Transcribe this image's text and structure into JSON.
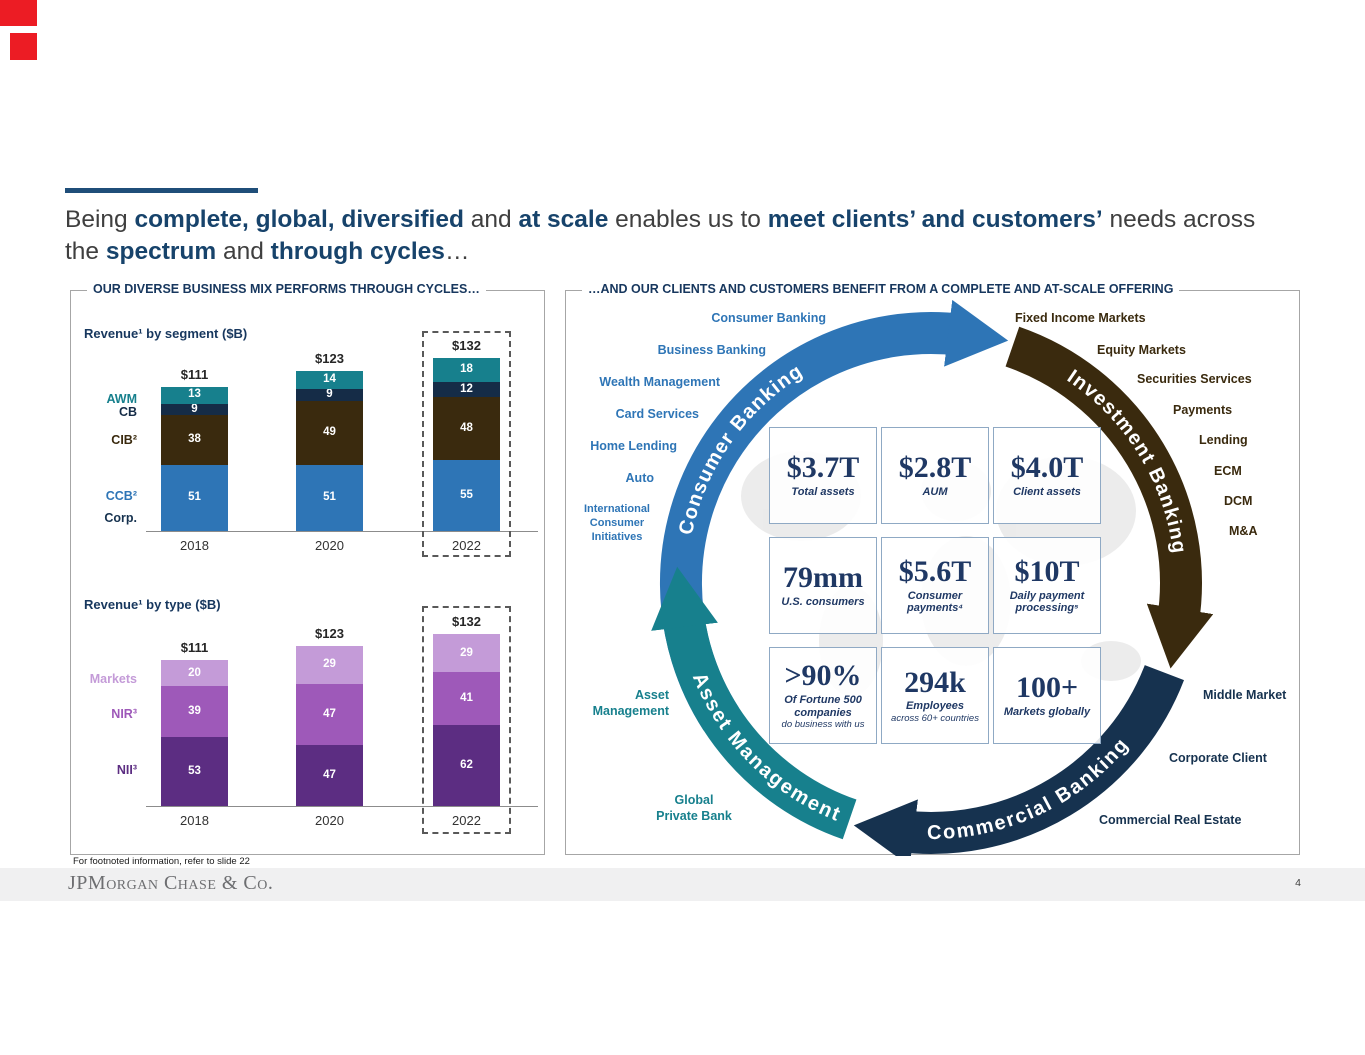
{
  "title": {
    "segments": [
      {
        "text": "Being "
      },
      {
        "text": "complete, global, diversified"
      },
      {
        "text": " and "
      },
      {
        "text": "at scale"
      },
      {
        "text": " enables us to "
      },
      {
        "text": "meet clients’ and customers’"
      },
      {
        "text": " needs across the "
      },
      {
        "text": "spectrum"
      },
      {
        "text": " and "
      },
      {
        "text": "through cycles"
      },
      {
        "text": "…"
      }
    ]
  },
  "left_panel": {
    "title": "OUR DIVERSE BUSINESS MIX PERFORMS THROUGH CYCLES…"
  },
  "chart_data": [
    {
      "type": "bar",
      "stacked": true,
      "title": "Revenue¹ by segment ($B)",
      "categories": [
        "2018",
        "2020",
        "2022"
      ],
      "totals": [
        "$111",
        "$123",
        "$132"
      ],
      "series": [
        {
          "name": "CCB²",
          "color": "#2e75b6",
          "values": [
            51,
            51,
            55
          ]
        },
        {
          "name": "CIB²",
          "color": "#3a2a0e",
          "values": [
            38,
            49,
            48
          ]
        },
        {
          "name": "CB",
          "color": "#152c47",
          "values": [
            9,
            9,
            12
          ]
        },
        {
          "name": "AWM",
          "color": "#17808d",
          "values": [
            13,
            14,
            18
          ]
        }
      ],
      "other_labels": [
        "Corp."
      ],
      "highlight_category": "2022",
      "xlabel": "",
      "ylabel": ""
    },
    {
      "type": "bar",
      "stacked": true,
      "title": "Revenue¹ by type ($B)",
      "categories": [
        "2018",
        "2020",
        "2022"
      ],
      "totals": [
        "$111",
        "$123",
        "$132"
      ],
      "series": [
        {
          "name": "NII³",
          "color": "#5c2d82",
          "values": [
            53,
            47,
            62
          ]
        },
        {
          "name": "NIR³",
          "color": "#9e59b9",
          "values": [
            39,
            47,
            41
          ]
        },
        {
          "name": "Markets",
          "color": "#c49bd8",
          "values": [
            20,
            29,
            29
          ]
        }
      ],
      "highlight_category": "2022",
      "xlabel": "",
      "ylabel": ""
    }
  ],
  "right_panel": {
    "title": "…AND OUR CLIENTS AND CUSTOMERS BENEFIT FROM A COMPLETE AND AT-SCALE OFFERING",
    "groups": [
      {
        "name": "Consumer Banking",
        "color": "#2e75b6",
        "items": [
          "Consumer Banking",
          "Business Banking",
          "Wealth Management",
          "Card Services",
          "Home Lending",
          "Auto",
          "International Consumer Initiatives"
        ]
      },
      {
        "name": "Investment Banking",
        "color": "#3a2a0e",
        "items": [
          "Fixed Income Markets",
          "Equity Markets",
          "Securities Services",
          "Payments",
          "Lending",
          "ECM",
          "DCM",
          "M&A"
        ]
      },
      {
        "name": "Commercial Banking",
        "color": "#16324f",
        "items": [
          "Middle Market",
          "Corporate Client",
          "Commercial Real Estate"
        ]
      },
      {
        "name": "Asset Management",
        "color": "#17808d",
        "items": [
          "Asset Management",
          "Global Private Bank"
        ]
      }
    ],
    "stats": [
      {
        "value": "$3.7T",
        "caption": "Total assets"
      },
      {
        "value": "$2.8T",
        "caption": "AUM"
      },
      {
        "value": "$4.0T",
        "caption": "Client assets"
      },
      {
        "value": "79mm",
        "caption": "U.S. consumers"
      },
      {
        "value": "$5.6T",
        "caption": "Consumer payments⁴"
      },
      {
        "value": "$10T",
        "caption": "Daily payment processing⁵"
      },
      {
        "value": ">90%",
        "caption": "Of Fortune 500 companies",
        "subcaption": "do business with us"
      },
      {
        "value": "294k",
        "caption": "Employees",
        "subcaption": "across 60+ countries"
      },
      {
        "value": "100+",
        "caption": "Markets globally"
      }
    ]
  },
  "footer": {
    "footnote": "For footnoted information, refer to slide 22",
    "logo": "JPMorgan Chase & Co.",
    "page_number": "4"
  }
}
